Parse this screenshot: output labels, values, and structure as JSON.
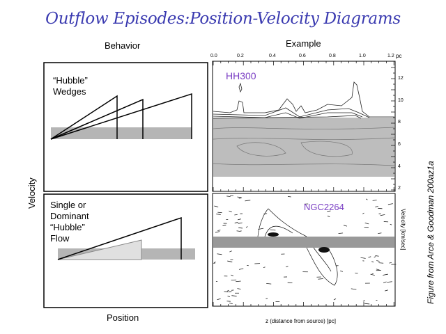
{
  "slide": {
    "title": "Outflow Episodes:Position-Velocity Diagrams",
    "behavior_heading": "Behavior",
    "example_heading": "Example",
    "y_axis_label": "Velocity",
    "x_axis_label": "Position",
    "panels": [
      {
        "caption_lines": [
          "“Hubble”",
          "Wedges"
        ]
      },
      {
        "caption_lines": [
          "Single or",
          "Dominant",
          "“Hubble”",
          "Flow"
        ]
      }
    ],
    "example": {
      "top_object": "HH300",
      "bottom_object": "NGC2264",
      "top_ticks": [
        "0.0",
        "0.2",
        "0.4",
        "0.6",
        "0.8",
        "1.0",
        "1.2"
      ],
      "top_unit": "pc",
      "right_ticks": [
        "12",
        "10",
        "8",
        "6",
        "4",
        "2"
      ],
      "velocity_label": "Velocity  [km/sec]",
      "xlabel": "z (distance from source)  [pc]",
      "object_color": "#7b3fc4"
    },
    "credit": "Figure from Arce & Goodman 200az1a"
  }
}
